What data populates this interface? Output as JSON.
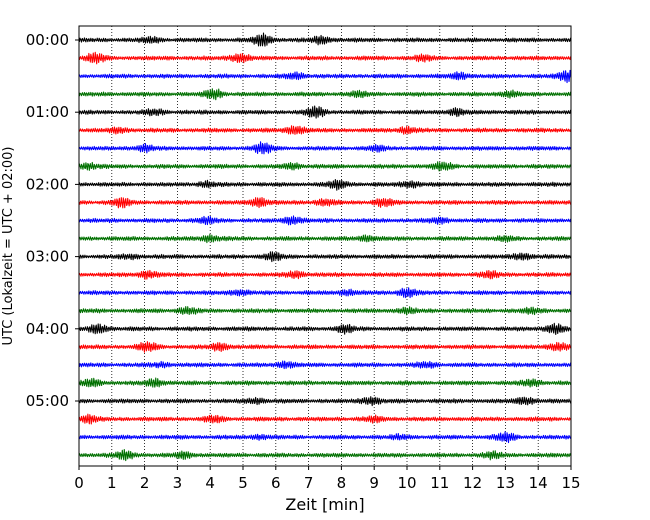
{
  "chart_data": {
    "type": "line",
    "title": "",
    "xlabel": "Zeit  [min]",
    "ylabel": "UTC (Lokalzeit = UTC + 02:00)",
    "xlim": [
      0,
      15
    ],
    "xticks": [
      "0",
      "1",
      "2",
      "3",
      "4",
      "5",
      "6",
      "7",
      "8",
      "9",
      "10",
      "11",
      "12",
      "13",
      "14",
      "15"
    ],
    "yticks": [
      "00:00",
      "01:00",
      "02:00",
      "03:00",
      "04:00",
      "05:00"
    ],
    "trace_interval_min": 15,
    "trace_count": 24,
    "color_cycle": [
      "#000000",
      "#ff0000",
      "#0000ff",
      "#007000"
    ],
    "grid": "vertical dotted lines at each minute",
    "traces": [
      {
        "start": "00:00",
        "color": "#000000",
        "events": [
          {
            "t": 5.6,
            "amp": 1.0
          },
          {
            "t": 7.4,
            "amp": 0.6
          },
          {
            "t": 2.2,
            "amp": 0.4
          }
        ]
      },
      {
        "start": "00:15",
        "color": "#ff0000",
        "events": [
          {
            "t": 0.5,
            "amp": 0.8
          },
          {
            "t": 4.9,
            "amp": 0.7
          },
          {
            "t": 10.5,
            "amp": 0.4
          }
        ]
      },
      {
        "start": "00:30",
        "color": "#0000ff",
        "events": [
          {
            "t": 6.6,
            "amp": 0.5
          },
          {
            "t": 11.6,
            "amp": 0.5
          },
          {
            "t": 14.9,
            "amp": 0.9
          }
        ]
      },
      {
        "start": "00:45",
        "color": "#007000",
        "events": [
          {
            "t": 4.1,
            "amp": 0.8
          },
          {
            "t": 8.5,
            "amp": 0.4
          },
          {
            "t": 13.1,
            "amp": 0.5
          }
        ]
      },
      {
        "start": "01:00",
        "color": "#000000",
        "events": [
          {
            "t": 7.2,
            "amp": 0.9
          },
          {
            "t": 2.3,
            "amp": 0.4
          },
          {
            "t": 11.5,
            "amp": 0.5
          }
        ]
      },
      {
        "start": "01:15",
        "color": "#ff0000",
        "events": [
          {
            "t": 6.6,
            "amp": 0.7
          },
          {
            "t": 10.0,
            "amp": 0.5
          },
          {
            "t": 1.2,
            "amp": 0.4
          }
        ]
      },
      {
        "start": "01:30",
        "color": "#0000ff",
        "events": [
          {
            "t": 5.6,
            "amp": 0.9
          },
          {
            "t": 2.0,
            "amp": 0.5
          },
          {
            "t": 9.1,
            "amp": 0.4
          }
        ]
      },
      {
        "start": "01:45",
        "color": "#007000",
        "events": [
          {
            "t": 11.1,
            "amp": 0.6
          },
          {
            "t": 0.3,
            "amp": 0.5
          },
          {
            "t": 6.5,
            "amp": 0.4
          }
        ]
      },
      {
        "start": "02:00",
        "color": "#000000",
        "events": [
          {
            "t": 7.9,
            "amp": 0.7
          },
          {
            "t": 10.1,
            "amp": 0.5
          },
          {
            "t": 3.9,
            "amp": 0.4
          }
        ]
      },
      {
        "start": "02:15",
        "color": "#ff0000",
        "events": [
          {
            "t": 5.5,
            "amp": 0.8
          },
          {
            "t": 1.3,
            "amp": 0.7
          },
          {
            "t": 7.5,
            "amp": 0.5
          },
          {
            "t": 9.3,
            "amp": 0.6
          }
        ]
      },
      {
        "start": "02:30",
        "color": "#0000ff",
        "events": [
          {
            "t": 6.5,
            "amp": 0.6
          },
          {
            "t": 3.9,
            "amp": 0.5
          },
          {
            "t": 11.0,
            "amp": 0.4
          }
        ]
      },
      {
        "start": "02:45",
        "color": "#007000",
        "events": [
          {
            "t": 4.0,
            "amp": 0.5
          },
          {
            "t": 8.8,
            "amp": 0.4
          },
          {
            "t": 13.0,
            "amp": 0.3
          }
        ]
      },
      {
        "start": "03:00",
        "color": "#000000",
        "events": [
          {
            "t": 5.9,
            "amp": 0.6
          },
          {
            "t": 13.5,
            "amp": 0.5
          },
          {
            "t": 1.6,
            "amp": 0.3
          }
        ]
      },
      {
        "start": "03:15",
        "color": "#ff0000",
        "events": [
          {
            "t": 2.1,
            "amp": 0.6
          },
          {
            "t": 6.6,
            "amp": 0.5
          },
          {
            "t": 12.5,
            "amp": 0.5
          }
        ]
      },
      {
        "start": "03:30",
        "color": "#0000ff",
        "events": [
          {
            "t": 10.0,
            "amp": 0.7
          },
          {
            "t": 4.9,
            "amp": 0.4
          },
          {
            "t": 8.2,
            "amp": 0.4
          }
        ]
      },
      {
        "start": "03:45",
        "color": "#007000",
        "events": [
          {
            "t": 3.3,
            "amp": 0.5
          },
          {
            "t": 10.0,
            "amp": 0.4
          },
          {
            "t": 13.8,
            "amp": 0.4
          }
        ]
      },
      {
        "start": "04:00",
        "color": "#000000",
        "events": [
          {
            "t": 0.6,
            "amp": 0.7
          },
          {
            "t": 8.1,
            "amp": 0.6
          },
          {
            "t": 14.5,
            "amp": 0.8
          }
        ]
      },
      {
        "start": "04:15",
        "color": "#ff0000",
        "events": [
          {
            "t": 2.1,
            "amp": 0.7
          },
          {
            "t": 4.3,
            "amp": 0.6
          },
          {
            "t": 14.6,
            "amp": 0.6
          }
        ]
      },
      {
        "start": "04:30",
        "color": "#0000ff",
        "events": [
          {
            "t": 6.3,
            "amp": 0.5
          },
          {
            "t": 10.6,
            "amp": 0.4
          },
          {
            "t": 2.5,
            "amp": 0.3
          }
        ]
      },
      {
        "start": "04:45",
        "color": "#007000",
        "events": [
          {
            "t": 0.4,
            "amp": 0.6
          },
          {
            "t": 2.3,
            "amp": 0.6
          },
          {
            "t": 13.8,
            "amp": 0.5
          }
        ]
      },
      {
        "start": "05:00",
        "color": "#000000",
        "events": [
          {
            "t": 8.9,
            "amp": 0.6
          },
          {
            "t": 13.6,
            "amp": 0.6
          },
          {
            "t": 5.4,
            "amp": 0.4
          }
        ]
      },
      {
        "start": "05:15",
        "color": "#ff0000",
        "events": [
          {
            "t": 0.3,
            "amp": 0.6
          },
          {
            "t": 4.1,
            "amp": 0.5
          },
          {
            "t": 9.0,
            "amp": 0.4
          }
        ]
      },
      {
        "start": "05:30",
        "color": "#0000ff",
        "events": [
          {
            "t": 13.0,
            "amp": 0.7
          },
          {
            "t": 5.5,
            "amp": 0.3
          },
          {
            "t": 9.8,
            "amp": 0.3
          }
        ]
      },
      {
        "start": "05:45",
        "color": "#007000",
        "events": [
          {
            "t": 1.4,
            "amp": 0.7
          },
          {
            "t": 3.2,
            "amp": 0.5
          },
          {
            "t": 12.6,
            "amp": 0.5
          }
        ]
      }
    ]
  }
}
